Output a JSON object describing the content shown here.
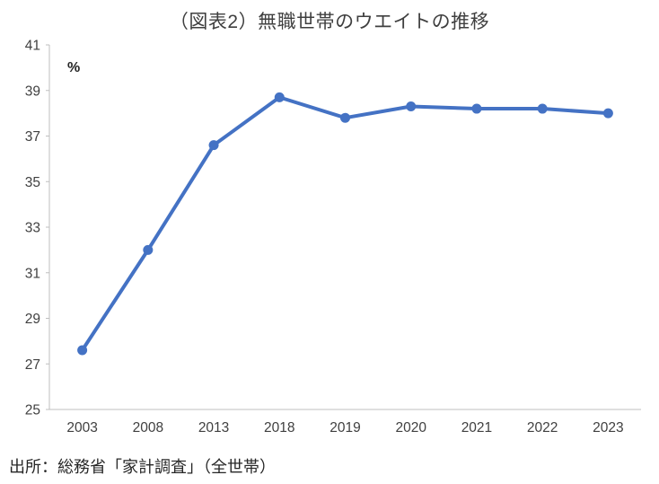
{
  "chart_data": {
    "type": "line",
    "title": "（図表2）無職世帯のウエイトの推移",
    "unit_label": "%",
    "categories": [
      "2003",
      "2008",
      "2013",
      "2018",
      "2019",
      "2020",
      "2021",
      "2022",
      "2023"
    ],
    "series": [
      {
        "name": "無職世帯のウエイト",
        "values": [
          27.6,
          32.0,
          36.6,
          38.7,
          37.8,
          38.3,
          38.2,
          38.2,
          38.0
        ]
      }
    ],
    "ylim": [
      25,
      41
    ],
    "ytick_step": 2,
    "grid": false,
    "legend_position": "none",
    "source": "出所：総務省「家計調査」（全世帯）",
    "colors": {
      "line": "#4472C4",
      "marker": "#4472C4",
      "axis": "#BFBFBF",
      "tick_text": "#404040",
      "title_text": "#3f3f3f"
    }
  }
}
